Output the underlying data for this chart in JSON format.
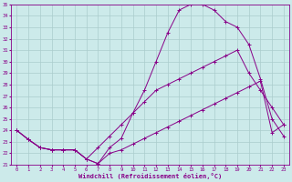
{
  "xlabel": "Windchill (Refroidissement éolien,°C)",
  "background_color": "#cceaea",
  "line_color": "#880088",
  "grid_color": "#aacccc",
  "xlim": [
    -0.5,
    23.5
  ],
  "ylim": [
    21,
    35
  ],
  "xticks": [
    0,
    1,
    2,
    3,
    4,
    5,
    6,
    7,
    8,
    9,
    10,
    11,
    12,
    13,
    14,
    15,
    16,
    17,
    18,
    19,
    20,
    21,
    22,
    23
  ],
  "yticks": [
    21,
    22,
    23,
    24,
    25,
    26,
    27,
    28,
    29,
    30,
    31,
    32,
    33,
    34,
    35
  ],
  "line1_x": [
    0,
    1,
    2,
    3,
    4,
    5,
    6,
    7,
    8,
    9,
    10,
    11,
    12,
    13,
    14,
    15,
    16,
    17,
    18,
    19,
    20,
    21,
    22,
    23
  ],
  "line1_y": [
    24.0,
    23.2,
    22.5,
    22.3,
    22.3,
    22.3,
    21.5,
    21.1,
    22.5,
    23.3,
    25.5,
    27.5,
    30.0,
    32.5,
    34.5,
    35.0,
    35.0,
    34.5,
    33.5,
    33.0,
    31.5,
    28.5,
    25.0,
    23.5
  ],
  "line2_x": [
    0,
    1,
    2,
    3,
    4,
    5,
    6,
    7,
    8,
    9,
    10,
    11,
    12,
    13,
    14,
    15,
    16,
    17,
    18,
    19,
    20,
    21,
    22,
    23
  ],
  "line2_y": [
    24.0,
    23.2,
    22.5,
    22.3,
    22.3,
    22.3,
    21.5,
    22.5,
    23.5,
    24.5,
    25.5,
    26.5,
    27.5,
    28.0,
    28.5,
    29.0,
    29.5,
    30.0,
    30.5,
    31.0,
    29.0,
    27.5,
    26.0,
    24.5
  ],
  "line3_x": [
    0,
    1,
    2,
    3,
    4,
    5,
    6,
    7,
    8,
    9,
    10,
    11,
    12,
    13,
    14,
    15,
    16,
    17,
    18,
    19,
    20,
    21,
    22,
    23
  ],
  "line3_y": [
    24.0,
    23.2,
    22.5,
    22.3,
    22.3,
    22.3,
    21.5,
    21.1,
    22.0,
    22.3,
    22.8,
    23.3,
    23.8,
    24.3,
    24.8,
    25.3,
    25.8,
    26.3,
    26.8,
    27.3,
    27.8,
    28.3,
    23.8,
    24.5
  ]
}
